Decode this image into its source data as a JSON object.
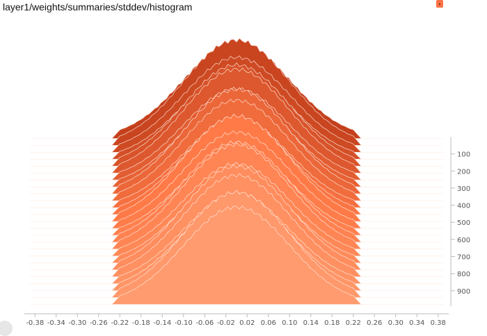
{
  "chart_title": "layer1/weights/summaries/stddev/histogram",
  "colors": {
    "front": "#ff9b6e",
    "middle": "#ff7a47",
    "back": "#c4401c",
    "accent": "#ff7043"
  },
  "chart_data": {
    "type": "histogram-offset",
    "title": "layer1/weights/summaries/stddev/histogram",
    "x_ticks": [
      -0.38,
      -0.34,
      -0.3,
      -0.26,
      -0.22,
      -0.18,
      -0.14,
      -0.1,
      -0.06,
      -0.02,
      0.02,
      0.06,
      0.1,
      0.14,
      0.18,
      0.22,
      0.26,
      0.3,
      0.34,
      0.38
    ],
    "xlim": [
      -0.4,
      0.4
    ],
    "step_ticks": [
      100,
      200,
      300,
      400,
      500,
      600,
      700,
      800,
      900
    ],
    "step_range": [
      0,
      990
    ],
    "distribution": {
      "center": 0.0,
      "stddev": 0.1,
      "support": [
        -0.22,
        0.22
      ]
    },
    "num_slices": 25
  }
}
